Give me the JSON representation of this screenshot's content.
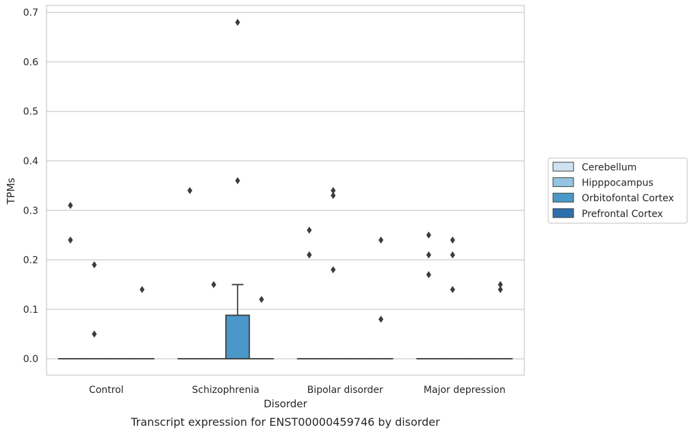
{
  "chart_data": {
    "type": "box",
    "title": "Transcript expression for ENST00000459746 by disorder",
    "xlabel": "Disorder",
    "ylabel": "TPMs",
    "ylim": [
      -0.033,
      0.714
    ],
    "yticks": [
      0.0,
      0.1,
      0.2,
      0.3,
      0.4,
      0.5,
      0.6,
      0.7
    ],
    "grid": true,
    "legend_position": "right",
    "categories": [
      "Control",
      "Schizophrenia",
      "Bipolar disorder",
      "Major depression"
    ],
    "series": [
      {
        "name": "Cerebellum",
        "color": "#d0e1f2",
        "boxes": [
          {
            "q1": 0,
            "median": 0,
            "q3": 0,
            "whisker_low": 0,
            "whisker_high": 0,
            "outliers": [
              0.31,
              0.24
            ]
          },
          {
            "q1": 0,
            "median": 0,
            "q3": 0,
            "whisker_low": 0,
            "whisker_high": 0,
            "outliers": [
              0.34
            ]
          },
          {
            "q1": 0,
            "median": 0,
            "q3": 0,
            "whisker_low": 0,
            "whisker_high": 0,
            "outliers": [
              0.26,
              0.21,
              0.21
            ]
          },
          {
            "q1": 0,
            "median": 0,
            "q3": 0,
            "whisker_low": 0,
            "whisker_high": 0,
            "outliers": [
              0.25,
              0.21,
              0.17
            ]
          }
        ]
      },
      {
        "name": "Hipppocampus",
        "color": "#94c4df",
        "boxes": [
          {
            "q1": 0,
            "median": 0,
            "q3": 0,
            "whisker_low": 0,
            "whisker_high": 0,
            "outliers": [
              0.19,
              0.05
            ]
          },
          {
            "q1": 0,
            "median": 0,
            "q3": 0,
            "whisker_low": 0,
            "whisker_high": 0,
            "outliers": [
              0.15
            ]
          },
          {
            "q1": 0,
            "median": 0,
            "q3": 0,
            "whisker_low": 0,
            "whisker_high": 0,
            "outliers": [
              0.34,
              0.33,
              0.18
            ]
          },
          {
            "q1": 0,
            "median": 0,
            "q3": 0,
            "whisker_low": 0,
            "whisker_high": 0,
            "outliers": [
              0.24,
              0.21,
              0.14
            ]
          }
        ]
      },
      {
        "name": "Orbitofontal Cortex",
        "color": "#4a98c9",
        "boxes": [
          {
            "q1": 0,
            "median": 0,
            "q3": 0,
            "whisker_low": 0,
            "whisker_high": 0,
            "outliers": []
          },
          {
            "q1": 0,
            "median": 0,
            "q3": 0.088,
            "whisker_low": 0,
            "whisker_high": 0.15,
            "outliers": [
              0.68,
              0.36
            ]
          },
          {
            "q1": 0,
            "median": 0,
            "q3": 0,
            "whisker_low": 0,
            "whisker_high": 0,
            "outliers": []
          },
          {
            "q1": 0,
            "median": 0,
            "q3": 0,
            "whisker_low": 0,
            "whisker_high": 0,
            "outliers": []
          }
        ]
      },
      {
        "name": "Prefrontal Cortex",
        "color": "#2e6fad",
        "boxes": [
          {
            "q1": 0,
            "median": 0,
            "q3": 0,
            "whisker_low": 0,
            "whisker_high": 0,
            "outliers": [
              0.14
            ]
          },
          {
            "q1": 0,
            "median": 0,
            "q3": 0,
            "whisker_low": 0,
            "whisker_high": 0,
            "outliers": [
              0.12
            ]
          },
          {
            "q1": 0,
            "median": 0,
            "q3": 0,
            "whisker_low": 0,
            "whisker_high": 0,
            "outliers": [
              0.24,
              0.08
            ]
          },
          {
            "q1": 0,
            "median": 0,
            "q3": 0,
            "whisker_low": 0,
            "whisker_high": 0,
            "outliers": [
              0.15,
              0.14
            ]
          }
        ]
      }
    ]
  }
}
